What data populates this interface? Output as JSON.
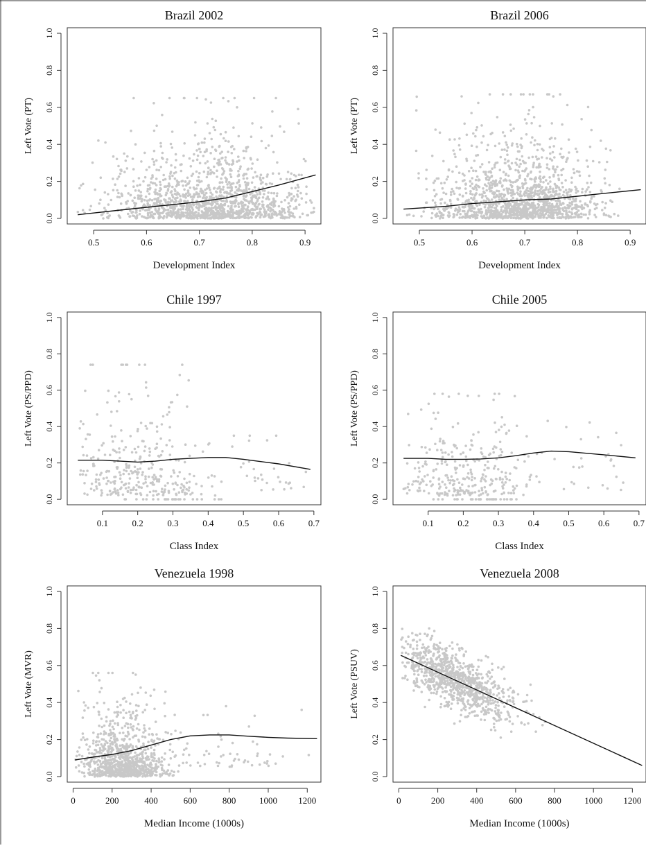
{
  "chart_data": [
    {
      "type": "scatter",
      "title": "Brazil 2002",
      "xlabel": "Development Index",
      "ylabel": "Left Vote (PT)",
      "xlim": [
        0.45,
        0.93
      ],
      "ylim": [
        -0.03,
        1.03
      ],
      "xticks": [
        0.5,
        0.6,
        0.7,
        0.8,
        0.9
      ],
      "yticks": [
        0.0,
        0.2,
        0.4,
        0.6,
        0.8,
        1.0
      ],
      "xtick_labels": [
        "0.5",
        "0.6",
        "0.7",
        "0.8",
        "0.9"
      ],
      "ytick_labels": [
        "0.0",
        "0.2",
        "0.4",
        "0.6",
        "0.8",
        "1.0"
      ],
      "grid": false,
      "point_color": "#c8c8c8",
      "scatter_clouds": [
        {
          "n": 1400,
          "x_range": [
            0.47,
            0.92
          ],
          "x_center": 0.72,
          "x_spread": 0.09,
          "y_floor": 0.0,
          "y_scale": 0.12,
          "y_max": 0.65
        }
      ],
      "smoother": {
        "x": [
          0.47,
          0.55,
          0.6,
          0.65,
          0.7,
          0.75,
          0.8,
          0.85,
          0.92
        ],
        "y": [
          0.02,
          0.045,
          0.06,
          0.075,
          0.09,
          0.11,
          0.145,
          0.18,
          0.235
        ]
      }
    },
    {
      "type": "scatter",
      "title": "Brazil 2006",
      "xlabel": "Development Index",
      "ylabel": "Left Vote (PT)",
      "xlim": [
        0.45,
        0.93
      ],
      "ylim": [
        -0.03,
        1.03
      ],
      "xticks": [
        0.5,
        0.6,
        0.7,
        0.8,
        0.9
      ],
      "yticks": [
        0.0,
        0.2,
        0.4,
        0.6,
        0.8,
        1.0
      ],
      "xtick_labels": [
        "0.5",
        "0.6",
        "0.7",
        "0.8",
        "0.9"
      ],
      "ytick_labels": [
        "0.0",
        "0.2",
        "0.4",
        "0.6",
        "0.8",
        "1.0"
      ],
      "grid": false,
      "point_color": "#c8c8c8",
      "scatter_clouds": [
        {
          "n": 1400,
          "x_range": [
            0.47,
            0.88
          ],
          "x_center": 0.69,
          "x_spread": 0.08,
          "y_floor": 0.0,
          "y_scale": 0.13,
          "y_max": 0.67
        }
      ],
      "smoother": {
        "x": [
          0.47,
          0.55,
          0.6,
          0.65,
          0.7,
          0.75,
          0.8,
          0.85,
          0.92
        ],
        "y": [
          0.05,
          0.065,
          0.08,
          0.09,
          0.1,
          0.105,
          0.12,
          0.135,
          0.155
        ]
      }
    },
    {
      "type": "scatter",
      "title": "Chile 1997",
      "xlabel": "Class Index",
      "ylabel": "Left Vote (PS/PPD)",
      "xlim": [
        0.0,
        0.72
      ],
      "ylim": [
        -0.03,
        1.03
      ],
      "xticks": [
        0.1,
        0.2,
        0.3,
        0.4,
        0.5,
        0.6,
        0.7
      ],
      "yticks": [
        0.0,
        0.2,
        0.4,
        0.6,
        0.8,
        1.0
      ],
      "xtick_labels": [
        "0.1",
        "0.2",
        "0.3",
        "0.4",
        "0.5",
        "0.6",
        "0.7"
      ],
      "ytick_labels": [
        "0.0",
        "0.2",
        "0.4",
        "0.6",
        "0.8",
        "1.0"
      ],
      "grid": false,
      "point_color": "#c8c8c8",
      "scatter_clouds": [
        {
          "n": 320,
          "x_range": [
            0.03,
            0.45
          ],
          "x_center": 0.2,
          "x_spread": 0.11,
          "y_floor": 0.02,
          "y_scale": 0.2,
          "y_max": 0.74
        },
        {
          "n": 30,
          "x_range": [
            0.45,
            0.7
          ],
          "x_center": 0.55,
          "x_spread": 0.07,
          "y_floor": 0.05,
          "y_scale": 0.12,
          "y_max": 0.35
        },
        {
          "n": 25,
          "x_range": [
            0.15,
            0.44
          ],
          "x_center": 0.28,
          "x_spread": 0.08,
          "y_floor": 0.0,
          "y_scale": 0.0,
          "y_max": 0.0
        }
      ],
      "smoother": {
        "x": [
          0.03,
          0.1,
          0.15,
          0.2,
          0.25,
          0.3,
          0.35,
          0.4,
          0.45,
          0.5,
          0.6,
          0.69
        ],
        "y": [
          0.215,
          0.215,
          0.21,
          0.205,
          0.21,
          0.22,
          0.225,
          0.23,
          0.23,
          0.22,
          0.195,
          0.165
        ]
      }
    },
    {
      "type": "scatter",
      "title": "Chile 2005",
      "xlabel": "Class Index",
      "ylabel": "Left Vote (PS/PPD)",
      "xlim": [
        0.0,
        0.72
      ],
      "ylim": [
        -0.03,
        1.03
      ],
      "xticks": [
        0.1,
        0.2,
        0.3,
        0.4,
        0.5,
        0.6,
        0.7
      ],
      "yticks": [
        0.0,
        0.2,
        0.4,
        0.6,
        0.8,
        1.0
      ],
      "xtick_labels": [
        "0.1",
        "0.2",
        "0.3",
        "0.4",
        "0.5",
        "0.6",
        "0.7"
      ],
      "ytick_labels": [
        "0.0",
        "0.2",
        "0.4",
        "0.6",
        "0.8",
        "1.0"
      ],
      "grid": false,
      "point_color": "#c8c8c8",
      "scatter_clouds": [
        {
          "n": 300,
          "x_range": [
            0.03,
            0.45
          ],
          "x_center": 0.2,
          "x_spread": 0.11,
          "y_floor": 0.02,
          "y_scale": 0.16,
          "y_max": 0.58
        },
        {
          "n": 25,
          "x_range": [
            0.45,
            0.7
          ],
          "x_center": 0.55,
          "x_spread": 0.07,
          "y_floor": 0.05,
          "y_scale": 0.12,
          "y_max": 0.45
        },
        {
          "n": 30,
          "x_range": [
            0.08,
            0.37
          ],
          "x_center": 0.25,
          "x_spread": 0.08,
          "y_floor": 0.0,
          "y_scale": 0.0,
          "y_max": 0.0
        }
      ],
      "smoother": {
        "x": [
          0.03,
          0.1,
          0.15,
          0.2,
          0.25,
          0.3,
          0.35,
          0.4,
          0.45,
          0.5,
          0.6,
          0.69
        ],
        "y": [
          0.225,
          0.225,
          0.22,
          0.22,
          0.222,
          0.228,
          0.24,
          0.255,
          0.265,
          0.262,
          0.245,
          0.228
        ]
      }
    },
    {
      "type": "scatter",
      "title": "Venezuela 1998",
      "xlabel": "Median Income (1000s)",
      "ylabel": "Left Vote (MVR)",
      "xlim": [
        -30,
        1270
      ],
      "ylim": [
        -0.03,
        1.03
      ],
      "xticks": [
        0,
        200,
        400,
        600,
        800,
        1000,
        1200
      ],
      "yticks": [
        0.0,
        0.2,
        0.4,
        0.6,
        0.8,
        1.0
      ],
      "xtick_labels": [
        "0",
        "200",
        "400",
        "600",
        "800",
        "1000",
        "1200"
      ],
      "ytick_labels": [
        "0.0",
        "0.2",
        "0.4",
        "0.6",
        "0.8",
        "1.0"
      ],
      "grid": false,
      "point_color": "#c8c8c8",
      "scatter_clouds": [
        {
          "n": 950,
          "x_range": [
            10,
            700
          ],
          "x_center": 260,
          "x_spread": 110,
          "y_floor": 0.0,
          "y_scale": 0.11,
          "y_max": 0.56
        },
        {
          "n": 60,
          "x_range": [
            400,
            1250
          ],
          "x_center": 750,
          "x_spread": 200,
          "y_floor": 0.05,
          "y_scale": 0.09,
          "y_max": 0.38
        }
      ],
      "smoother": {
        "x": [
          10,
          100,
          200,
          300,
          400,
          500,
          600,
          700,
          800,
          900,
          1000,
          1100,
          1250
        ],
        "y": [
          0.09,
          0.105,
          0.12,
          0.14,
          0.17,
          0.2,
          0.22,
          0.225,
          0.225,
          0.218,
          0.212,
          0.208,
          0.205
        ]
      }
    },
    {
      "type": "scatter",
      "title": "Venezuela 2008",
      "xlabel": "Median Income (1000s)",
      "ylabel": "Left Vote (PSUV)",
      "xlim": [
        -30,
        1270
      ],
      "ylim": [
        -0.03,
        1.03
      ],
      "xticks": [
        0,
        200,
        400,
        600,
        800,
        1000,
        1200
      ],
      "yticks": [
        0.0,
        0.2,
        0.4,
        0.6,
        0.8,
        1.0
      ],
      "xtick_labels": [
        "0",
        "200",
        "400",
        "600",
        "800",
        "1000",
        "1200"
      ],
      "ytick_labels": [
        "0.0",
        "0.2",
        "0.4",
        "0.6",
        "0.8",
        "1.0"
      ],
      "grid": false,
      "point_color": "#c8c8c8",
      "scatter_clouds": [
        {
          "n": 950,
          "x_range": [
            10,
            1250
          ],
          "x_center": 290,
          "x_spread": 150,
          "trend": {
            "x0": 10,
            "y0": 0.655,
            "x1": 1250,
            "y1": 0.06
          },
          "y_noise": 0.08,
          "y_max": 0.95
        }
      ],
      "smoother": {
        "x": [
          10,
          1250
        ],
        "y": [
          0.655,
          0.06
        ]
      }
    }
  ]
}
